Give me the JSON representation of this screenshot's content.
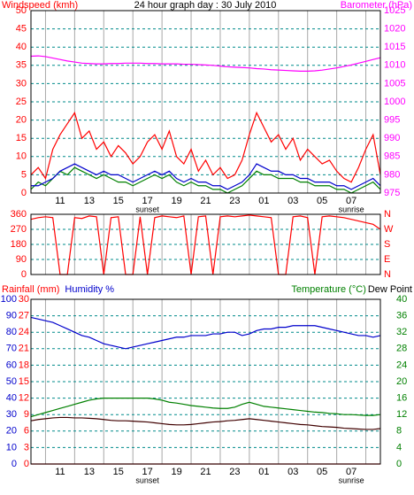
{
  "chart_data": [
    {
      "type": "line",
      "title": "24 hour graph day : 30 July 2010",
      "labels": [
        {
          "text": "Windspeed (kmh)",
          "color": "#ff0000",
          "side": "left"
        },
        {
          "text": "Barometer (hPa)",
          "color": "#ff00ff",
          "side": "right"
        }
      ],
      "axis_colors": {
        "y": "#ff0000",
        "y2": "#ff00ff"
      },
      "x": [
        0,
        0.5,
        1,
        1.5,
        2,
        2.5,
        3,
        3.5,
        4,
        4.5,
        5,
        5.5,
        6,
        6.5,
        7,
        7.5,
        8,
        8.5,
        9,
        9.5,
        10,
        10.5,
        11,
        11.5,
        12,
        12.5,
        13,
        13.5,
        14,
        14.5,
        15,
        15.5,
        16,
        16.5,
        17,
        17.5,
        18,
        18.5,
        19,
        19.5,
        20,
        20.5,
        21,
        21.5,
        22,
        22.5,
        23,
        23.5,
        24
      ],
      "xlim": [
        0,
        24
      ],
      "xticks": [
        {
          "value": 2,
          "label": "11"
        },
        {
          "value": 4,
          "label": "13"
        },
        {
          "value": 6,
          "label": "15"
        },
        {
          "value": 8,
          "label": "17"
        },
        {
          "value": 10,
          "label": "19"
        },
        {
          "value": 12,
          "label": "21"
        },
        {
          "value": 14,
          "label": "23"
        },
        {
          "value": 16,
          "label": "01"
        },
        {
          "value": 18,
          "label": "03"
        },
        {
          "value": 20,
          "label": "05"
        },
        {
          "value": 22,
          "label": "07"
        }
      ],
      "xgrid": [
        1,
        3,
        5,
        7,
        9,
        11,
        13,
        15,
        17,
        19,
        21,
        23
      ],
      "annotations": [
        {
          "text": "sunset",
          "x": 8
        },
        {
          "text": "sunrise",
          "x": 22
        }
      ],
      "ylim": [
        0,
        50
      ],
      "yticks": [
        0,
        5,
        10,
        15,
        20,
        25,
        30,
        35,
        40,
        45,
        50
      ],
      "y2lim": [
        975,
        1025
      ],
      "y2ticks": [
        975,
        980,
        985,
        990,
        995,
        1000,
        1005,
        1010,
        1015,
        1020,
        1025
      ],
      "series": [
        {
          "color": "#ff0000",
          "values": [
            5,
            7,
            4,
            12,
            16,
            19,
            22,
            15,
            17,
            12,
            14,
            10,
            13,
            11,
            8,
            10,
            14,
            16,
            12,
            17,
            10,
            8,
            12,
            6,
            9,
            5,
            7,
            4,
            5,
            9,
            16,
            22,
            18,
            14,
            16,
            12,
            15,
            9,
            12,
            10,
            8,
            9,
            6,
            4,
            3,
            7,
            12,
            16,
            5
          ]
        },
        {
          "color": "#008000",
          "values": [
            1,
            3,
            2,
            4,
            6,
            5,
            7,
            6,
            5,
            4,
            5,
            4,
            3,
            3,
            2,
            3,
            4,
            5,
            4,
            5,
            3,
            2,
            3,
            2,
            2,
            1,
            1,
            0,
            1,
            2,
            4,
            6,
            5,
            5,
            4,
            4,
            4,
            3,
            3,
            2,
            2,
            2,
            1,
            1,
            0,
            1,
            2,
            3,
            1
          ]
        },
        {
          "color": "#0000cc",
          "values": [
            2,
            2,
            3,
            4,
            6,
            7,
            8,
            7,
            6,
            5,
            6,
            5,
            5,
            4,
            3,
            4,
            5,
            6,
            5,
            6,
            4,
            3,
            4,
            3,
            3,
            2,
            2,
            1,
            2,
            3,
            5,
            8,
            7,
            6,
            6,
            5,
            5,
            4,
            4,
            3,
            3,
            3,
            2,
            2,
            1,
            2,
            3,
            4,
            2
          ]
        },
        {
          "color": "#ff00ff",
          "axis": "y2",
          "values": [
            1012.5,
            1012.6,
            1012.4,
            1012,
            1011.6,
            1011.2,
            1010.9,
            1010.6,
            1010.5,
            1010.4,
            1010.4,
            1010.5,
            1010.5,
            1010.6,
            1010.6,
            1010.6,
            1010.5,
            1010.5,
            1010.4,
            1010.4,
            1010.4,
            1010.3,
            1010.3,
            1010.2,
            1010.1,
            1010,
            1009.8,
            1009.6,
            1009.5,
            1009.4,
            1009.3,
            1009.1,
            1009,
            1008.8,
            1008.7,
            1008.6,
            1008.5,
            1008.4,
            1008.4,
            1008.5,
            1008.7,
            1009,
            1009.3,
            1009.7,
            1010.1,
            1010.6,
            1011.1,
            1011.6,
            1012.1
          ]
        }
      ]
    },
    {
      "type": "line",
      "axis_colors": {
        "y": "#ff0000",
        "y2": "#ff0000"
      },
      "x": [
        0,
        0.5,
        1,
        1.5,
        2,
        2.5,
        3,
        3.5,
        4,
        4.5,
        5,
        5.5,
        6,
        6.5,
        7,
        7.5,
        8,
        8.5,
        9,
        9.5,
        10,
        10.5,
        11,
        11.5,
        12,
        12.5,
        13,
        13.5,
        14,
        14.5,
        15,
        15.5,
        16,
        16.5,
        17,
        17.5,
        18,
        18.5,
        19,
        19.5,
        20,
        20.5,
        21,
        21.5,
        22,
        22.5,
        23,
        23.5,
        24
      ],
      "xlim": [
        0,
        24
      ],
      "xgrid": [
        1,
        3,
        5,
        7,
        9,
        11,
        13,
        15,
        17,
        19,
        21,
        23
      ],
      "ylim": [
        0,
        360
      ],
      "yticks": [
        0,
        90,
        180,
        270,
        360
      ],
      "y2lim": [
        0,
        360
      ],
      "y2ticks": [
        {
          "value": 0,
          "label": "N"
        },
        {
          "value": 90,
          "label": "E"
        },
        {
          "value": 180,
          "label": "S"
        },
        {
          "value": 270,
          "label": "W"
        },
        {
          "value": 360,
          "label": "N"
        }
      ],
      "series": [
        {
          "color": "#ff0000",
          "values": [
            330,
            340,
            345,
            340,
            0,
            0,
            340,
            335,
            350,
            345,
            0,
            340,
            345,
            0,
            0,
            345,
            0,
            340,
            350,
            345,
            340,
            350,
            0,
            345,
            350,
            0,
            345,
            350,
            345,
            350,
            355,
            350,
            345,
            340,
            0,
            0,
            345,
            350,
            340,
            0,
            345,
            350,
            345,
            340,
            330,
            320,
            310,
            300,
            270
          ]
        }
      ]
    },
    {
      "type": "line",
      "labels": [
        {
          "text": "Rainfall (mm)",
          "color": "#ff0000",
          "side": "left"
        },
        {
          "text": "Humidity %",
          "color": "#0000cc",
          "side": "left"
        },
        {
          "text": "Temperature (°C)",
          "color": "#008000",
          "side": "right"
        },
        {
          "text": "Dew Point",
          "color": "#000000",
          "side": "right"
        }
      ],
      "axis_colors": {
        "y": "#0000cc",
        "y2": "#008000",
        "y3": "#ff0000"
      },
      "x": [
        0,
        0.5,
        1,
        1.5,
        2,
        2.5,
        3,
        3.5,
        4,
        4.5,
        5,
        5.5,
        6,
        6.5,
        7,
        7.5,
        8,
        8.5,
        9,
        9.5,
        10,
        10.5,
        11,
        11.5,
        12,
        12.5,
        13,
        13.5,
        14,
        14.5,
        15,
        15.5,
        16,
        16.5,
        17,
        17.5,
        18,
        18.5,
        19,
        19.5,
        20,
        20.5,
        21,
        21.5,
        22,
        22.5,
        23,
        23.5,
        24
      ],
      "xlim": [
        0,
        24
      ],
      "xticks": [
        {
          "value": 2,
          "label": "11"
        },
        {
          "value": 4,
          "label": "13"
        },
        {
          "value": 6,
          "label": "15"
        },
        {
          "value": 8,
          "label": "17"
        },
        {
          "value": 10,
          "label": "19"
        },
        {
          "value": 12,
          "label": "21"
        },
        {
          "value": 14,
          "label": "23"
        },
        {
          "value": 16,
          "label": "01"
        },
        {
          "value": 18,
          "label": "03"
        },
        {
          "value": 20,
          "label": "05"
        },
        {
          "value": 22,
          "label": "07"
        }
      ],
      "xgrid": [
        1,
        3,
        5,
        7,
        9,
        11,
        13,
        15,
        17,
        19,
        21,
        23
      ],
      "annotations": [
        {
          "text": "sunset",
          "x": 8
        },
        {
          "text": "sunrise",
          "x": 22
        }
      ],
      "ylim": [
        0,
        100
      ],
      "yticks": [
        0,
        10,
        20,
        30,
        40,
        50,
        60,
        70,
        80,
        90,
        100
      ],
      "y3lim": [
        0,
        30
      ],
      "y3ticks": [
        0,
        3,
        6,
        9,
        12,
        15,
        18,
        21,
        24,
        27,
        30
      ],
      "y2lim": [
        0,
        40
      ],
      "y2ticks": [
        0,
        4,
        8,
        12,
        16,
        20,
        24,
        28,
        32,
        36,
        40
      ],
      "series": [
        {
          "color": "#ff0000",
          "axis": "y3",
          "values": [
            0,
            0,
            0,
            0,
            0,
            0,
            0,
            0,
            0,
            0,
            0,
            0,
            0,
            0,
            0,
            0,
            0,
            0,
            0,
            0,
            0,
            0,
            0,
            0,
            0,
            0,
            0,
            0,
            0,
            0,
            0,
            0,
            0,
            0,
            0,
            0,
            0,
            0,
            0,
            0,
            0,
            0,
            0,
            0,
            0,
            0,
            0,
            0,
            0
          ]
        },
        {
          "color": "#0000cc",
          "values": [
            89,
            88,
            87,
            86,
            84,
            82,
            80,
            78,
            77,
            75,
            73,
            72,
            71,
            70,
            71,
            72,
            73,
            74,
            75,
            76,
            77,
            77,
            78,
            78,
            78,
            79,
            79,
            80,
            80,
            78,
            79,
            81,
            82,
            82,
            83,
            83,
            84,
            84,
            84,
            84,
            83,
            82,
            81,
            80,
            79,
            78,
            78,
            77,
            78
          ]
        },
        {
          "color": "#008000",
          "axis": "y2",
          "values": [
            11.5,
            12,
            12.5,
            13,
            13.5,
            14,
            14.5,
            15,
            15.5,
            15.8,
            16,
            16,
            16,
            16,
            16,
            16,
            16,
            15.8,
            15.5,
            15,
            14.8,
            14.5,
            14.2,
            14,
            13.8,
            13.6,
            13.5,
            13.5,
            13.8,
            14.5,
            15,
            14.5,
            14,
            13.8,
            13.6,
            13.4,
            13.2,
            13,
            12.8,
            12.6,
            12.5,
            12.3,
            12.2,
            12,
            12,
            11.9,
            11.8,
            11.8,
            12
          ]
        },
        {
          "color": "#400000",
          "axis": "y2",
          "values": [
            10.5,
            10.8,
            11,
            11.2,
            11.3,
            11.3,
            11.2,
            11.2,
            11.1,
            11,
            10.8,
            10.6,
            10.5,
            10.5,
            10.4,
            10.3,
            10.2,
            10,
            9.8,
            9.6,
            9.5,
            9.5,
            9.6,
            9.8,
            10,
            10.2,
            10.3,
            10.5,
            10.6,
            10.8,
            11,
            10.8,
            10.6,
            10.4,
            10.2,
            10,
            9.8,
            9.6,
            9.5,
            9.3,
            9.1,
            9,
            8.9,
            8.7,
            8.6,
            8.5,
            8.4,
            8.4,
            8.6
          ]
        }
      ]
    }
  ]
}
